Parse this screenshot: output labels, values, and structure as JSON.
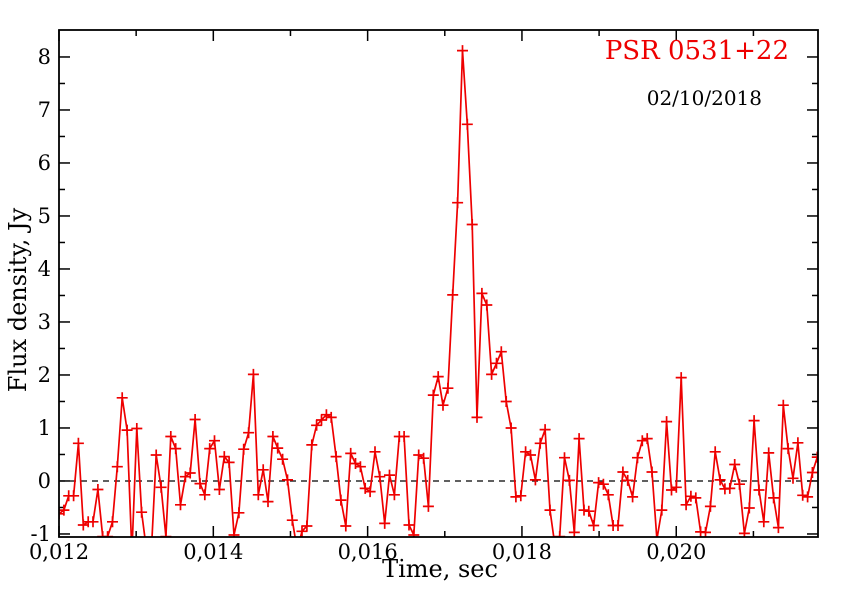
{
  "chart": {
    "title": "PSR 0531+22",
    "annotation_date": "02/10/2018",
    "xlabel": "Time, sec",
    "ylabel": "Flux density, Jy",
    "colors": {
      "series": "#ee0000",
      "title": "#ee0000",
      "axis": "#000000",
      "baseline": "#000000",
      "background": "#ffffff"
    }
  },
  "chart_data": {
    "type": "line",
    "marker": "plus",
    "title": "PSR 0531+22",
    "date_label": "02/10/2018",
    "xlabel": "Time, sec",
    "ylabel": "Flux density, Jy",
    "legend": "none",
    "grid": "off",
    "zero_baseline": 0,
    "xlim": [
      0.012,
      0.021837
    ],
    "ylim": [
      -1.057,
      8.509
    ],
    "x_major_ticks": [
      0.012,
      0.014,
      0.016,
      0.018,
      0.02
    ],
    "x_major_labels": [
      "0,012",
      "0,014",
      "0,016",
      "0,018",
      "0,020"
    ],
    "x_minor_ticks": [
      0.013,
      0.015,
      0.017,
      0.019,
      0.021
    ],
    "y_major_ticks": [
      -1,
      0,
      1,
      2,
      3,
      4,
      5,
      6,
      7,
      8
    ],
    "y_major_labels": [
      "-1",
      "0",
      "1",
      "2",
      "3",
      "4",
      "5",
      "6",
      "7",
      "8"
    ],
    "y_minor_ticks": [
      -0.5,
      0.5,
      1.5,
      2.5,
      3.5,
      4.5,
      5.5,
      6.5,
      7.5
    ],
    "t_start": 0.012,
    "t_step": 6.3e-05,
    "peak": {
      "t": 0.0172,
      "flux": 8.12
    },
    "values": [
      -0.62,
      -0.55,
      -0.28,
      -0.28,
      0.71,
      -0.83,
      -0.77,
      -0.77,
      -0.16,
      -1.05,
      -1.05,
      -0.77,
      0.27,
      1.57,
      0.96,
      -1.35,
      0.99,
      -0.59,
      -1.3,
      -1.3,
      0.49,
      -0.12,
      -1.05,
      0.84,
      0.61,
      -0.45,
      0.08,
      0.15,
      1.16,
      -0.05,
      -0.26,
      0.61,
      0.76,
      -0.16,
      0.46,
      0.35,
      -1.02,
      -0.6,
      0.6,
      0.91,
      2.01,
      -0.26,
      0.21,
      -0.39,
      0.84,
      0.62,
      0.41,
      0.02,
      -0.74,
      -1.3,
      -0.95,
      -0.85,
      0.68,
      1.05,
      1.15,
      1.25,
      1.2,
      0.46,
      -0.36,
      -0.85,
      0.52,
      0.33,
      0.27,
      -0.14,
      -0.2,
      0.55,
      0.08,
      -0.8,
      0.11,
      -0.26,
      0.84,
      0.84,
      -0.83,
      -1.02,
      0.49,
      0.43,
      -0.48,
      1.62,
      1.97,
      1.43,
      1.75,
      3.51,
      5.25,
      8.12,
      6.73,
      4.84,
      1.2,
      3.54,
      3.32,
      2.01,
      2.22,
      2.44,
      1.5,
      1.0,
      -0.3,
      -0.28,
      0.55,
      0.49,
      0.02,
      0.71,
      0.97,
      -0.55,
      -1.2,
      -1.05,
      0.44,
      0.01,
      -0.97,
      0.8,
      -0.55,
      -0.57,
      -0.84,
      -0.03,
      -0.06,
      -0.26,
      -0.84,
      -0.84,
      0.17,
      0.01,
      -0.3,
      0.44,
      0.76,
      0.8,
      0.17,
      -1.1,
      -0.55,
      1.12,
      -0.17,
      -0.12,
      1.95,
      -0.45,
      -0.29,
      -0.32,
      -0.96,
      -0.97,
      -0.48,
      0.55,
      0.02,
      -0.15,
      -0.14,
      0.31,
      -0.06,
      -0.99,
      -0.51,
      1.14,
      -0.17,
      -0.77,
      0.53,
      -0.32,
      -0.88,
      1.43,
      0.61,
      0.05,
      0.72,
      -0.27,
      -0.3,
      0.16,
      0.45
    ]
  }
}
